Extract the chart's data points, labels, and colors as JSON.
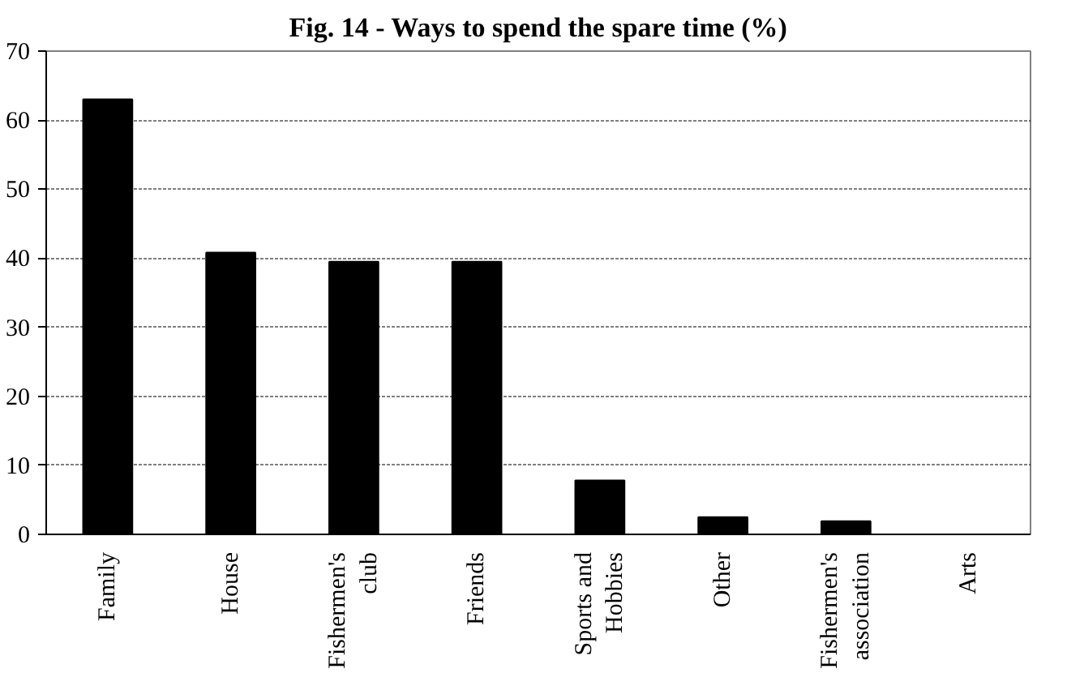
{
  "chart_data": {
    "type": "bar",
    "title": "Fig. 14 - Ways to spend the spare time (%)",
    "categories": [
      "Family",
      "House",
      "Fishermen's club",
      "Friends",
      "Sports and Hobbies",
      "Other",
      "Fishermen's association",
      "Arts"
    ],
    "values": [
      63,
      40.8,
      39.5,
      39.5,
      7.8,
      2.5,
      1.9,
      0
    ],
    "color": "#000000",
    "ylim": [
      0,
      70
    ],
    "yticks": [
      0,
      10,
      20,
      30,
      40,
      50,
      60,
      70
    ],
    "grid": "y"
  }
}
